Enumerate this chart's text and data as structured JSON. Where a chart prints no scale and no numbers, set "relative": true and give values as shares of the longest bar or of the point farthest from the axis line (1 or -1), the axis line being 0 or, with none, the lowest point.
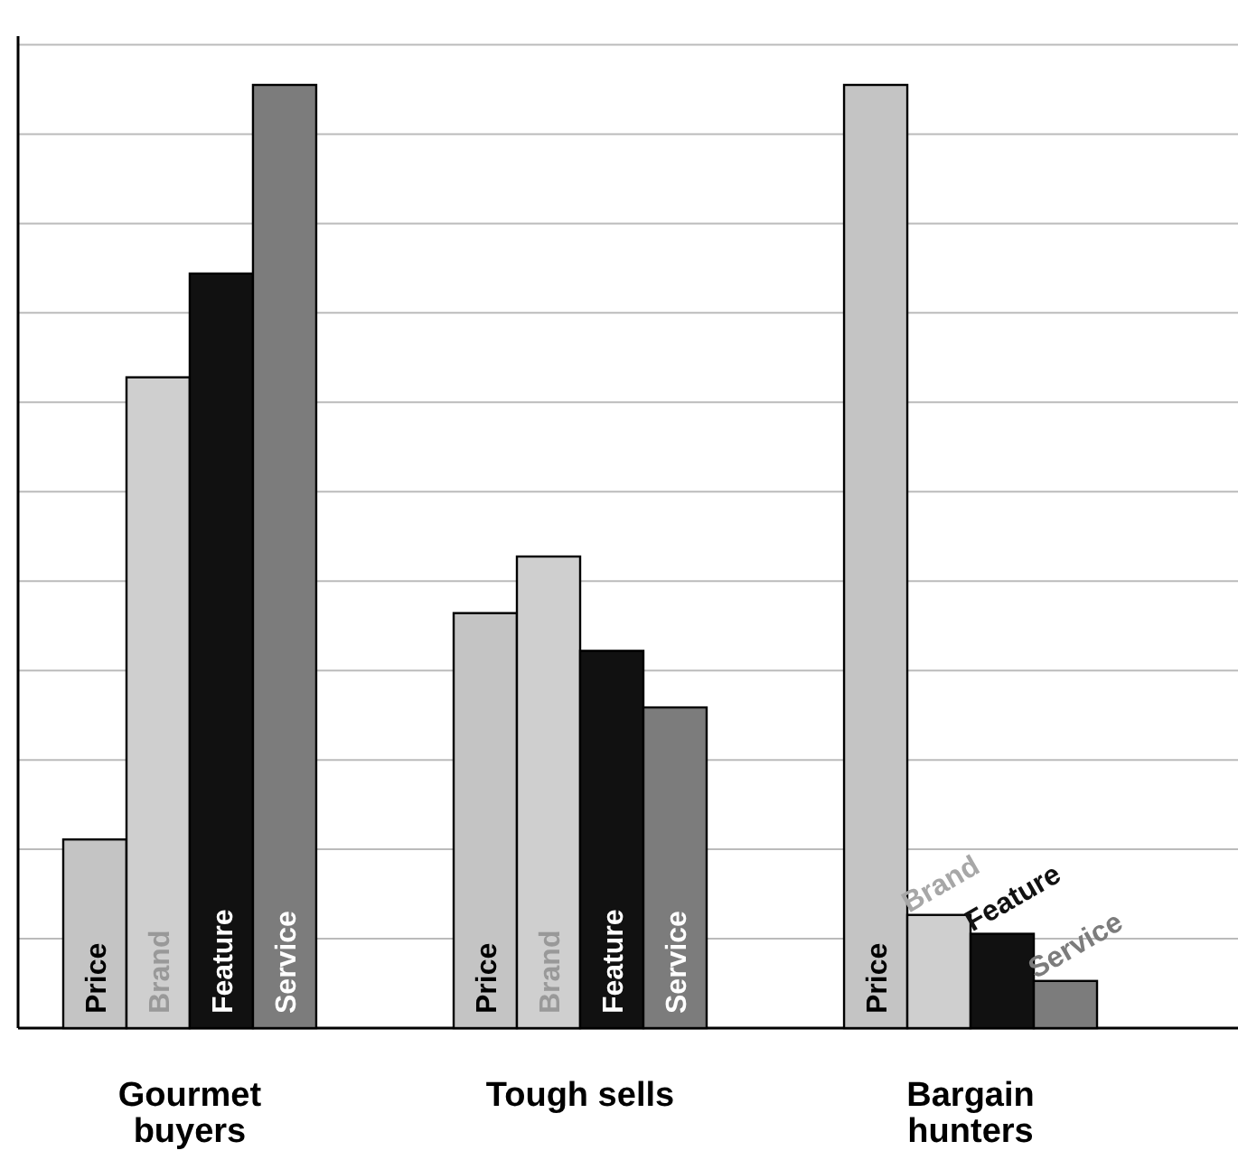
{
  "chart_data": {
    "type": "bar",
    "relative": true,
    "grid": "y",
    "categories": [
      "Gourmet buyers",
      "Tough sells",
      "Bargain hunters"
    ],
    "series": [
      {
        "name": "Price",
        "color": "#c4c4c4",
        "values": [
          0.2,
          0.44,
          1.0
        ]
      },
      {
        "name": "Brand",
        "color": "#cfcfcf",
        "values": [
          0.69,
          0.5,
          0.12
        ]
      },
      {
        "name": "Feature",
        "color": "#111111",
        "values": [
          0.8,
          0.4,
          0.1
        ]
      },
      {
        "name": "Service",
        "color": "#7c7c7c",
        "values": [
          1.0,
          0.34,
          0.05
        ]
      }
    ]
  }
}
